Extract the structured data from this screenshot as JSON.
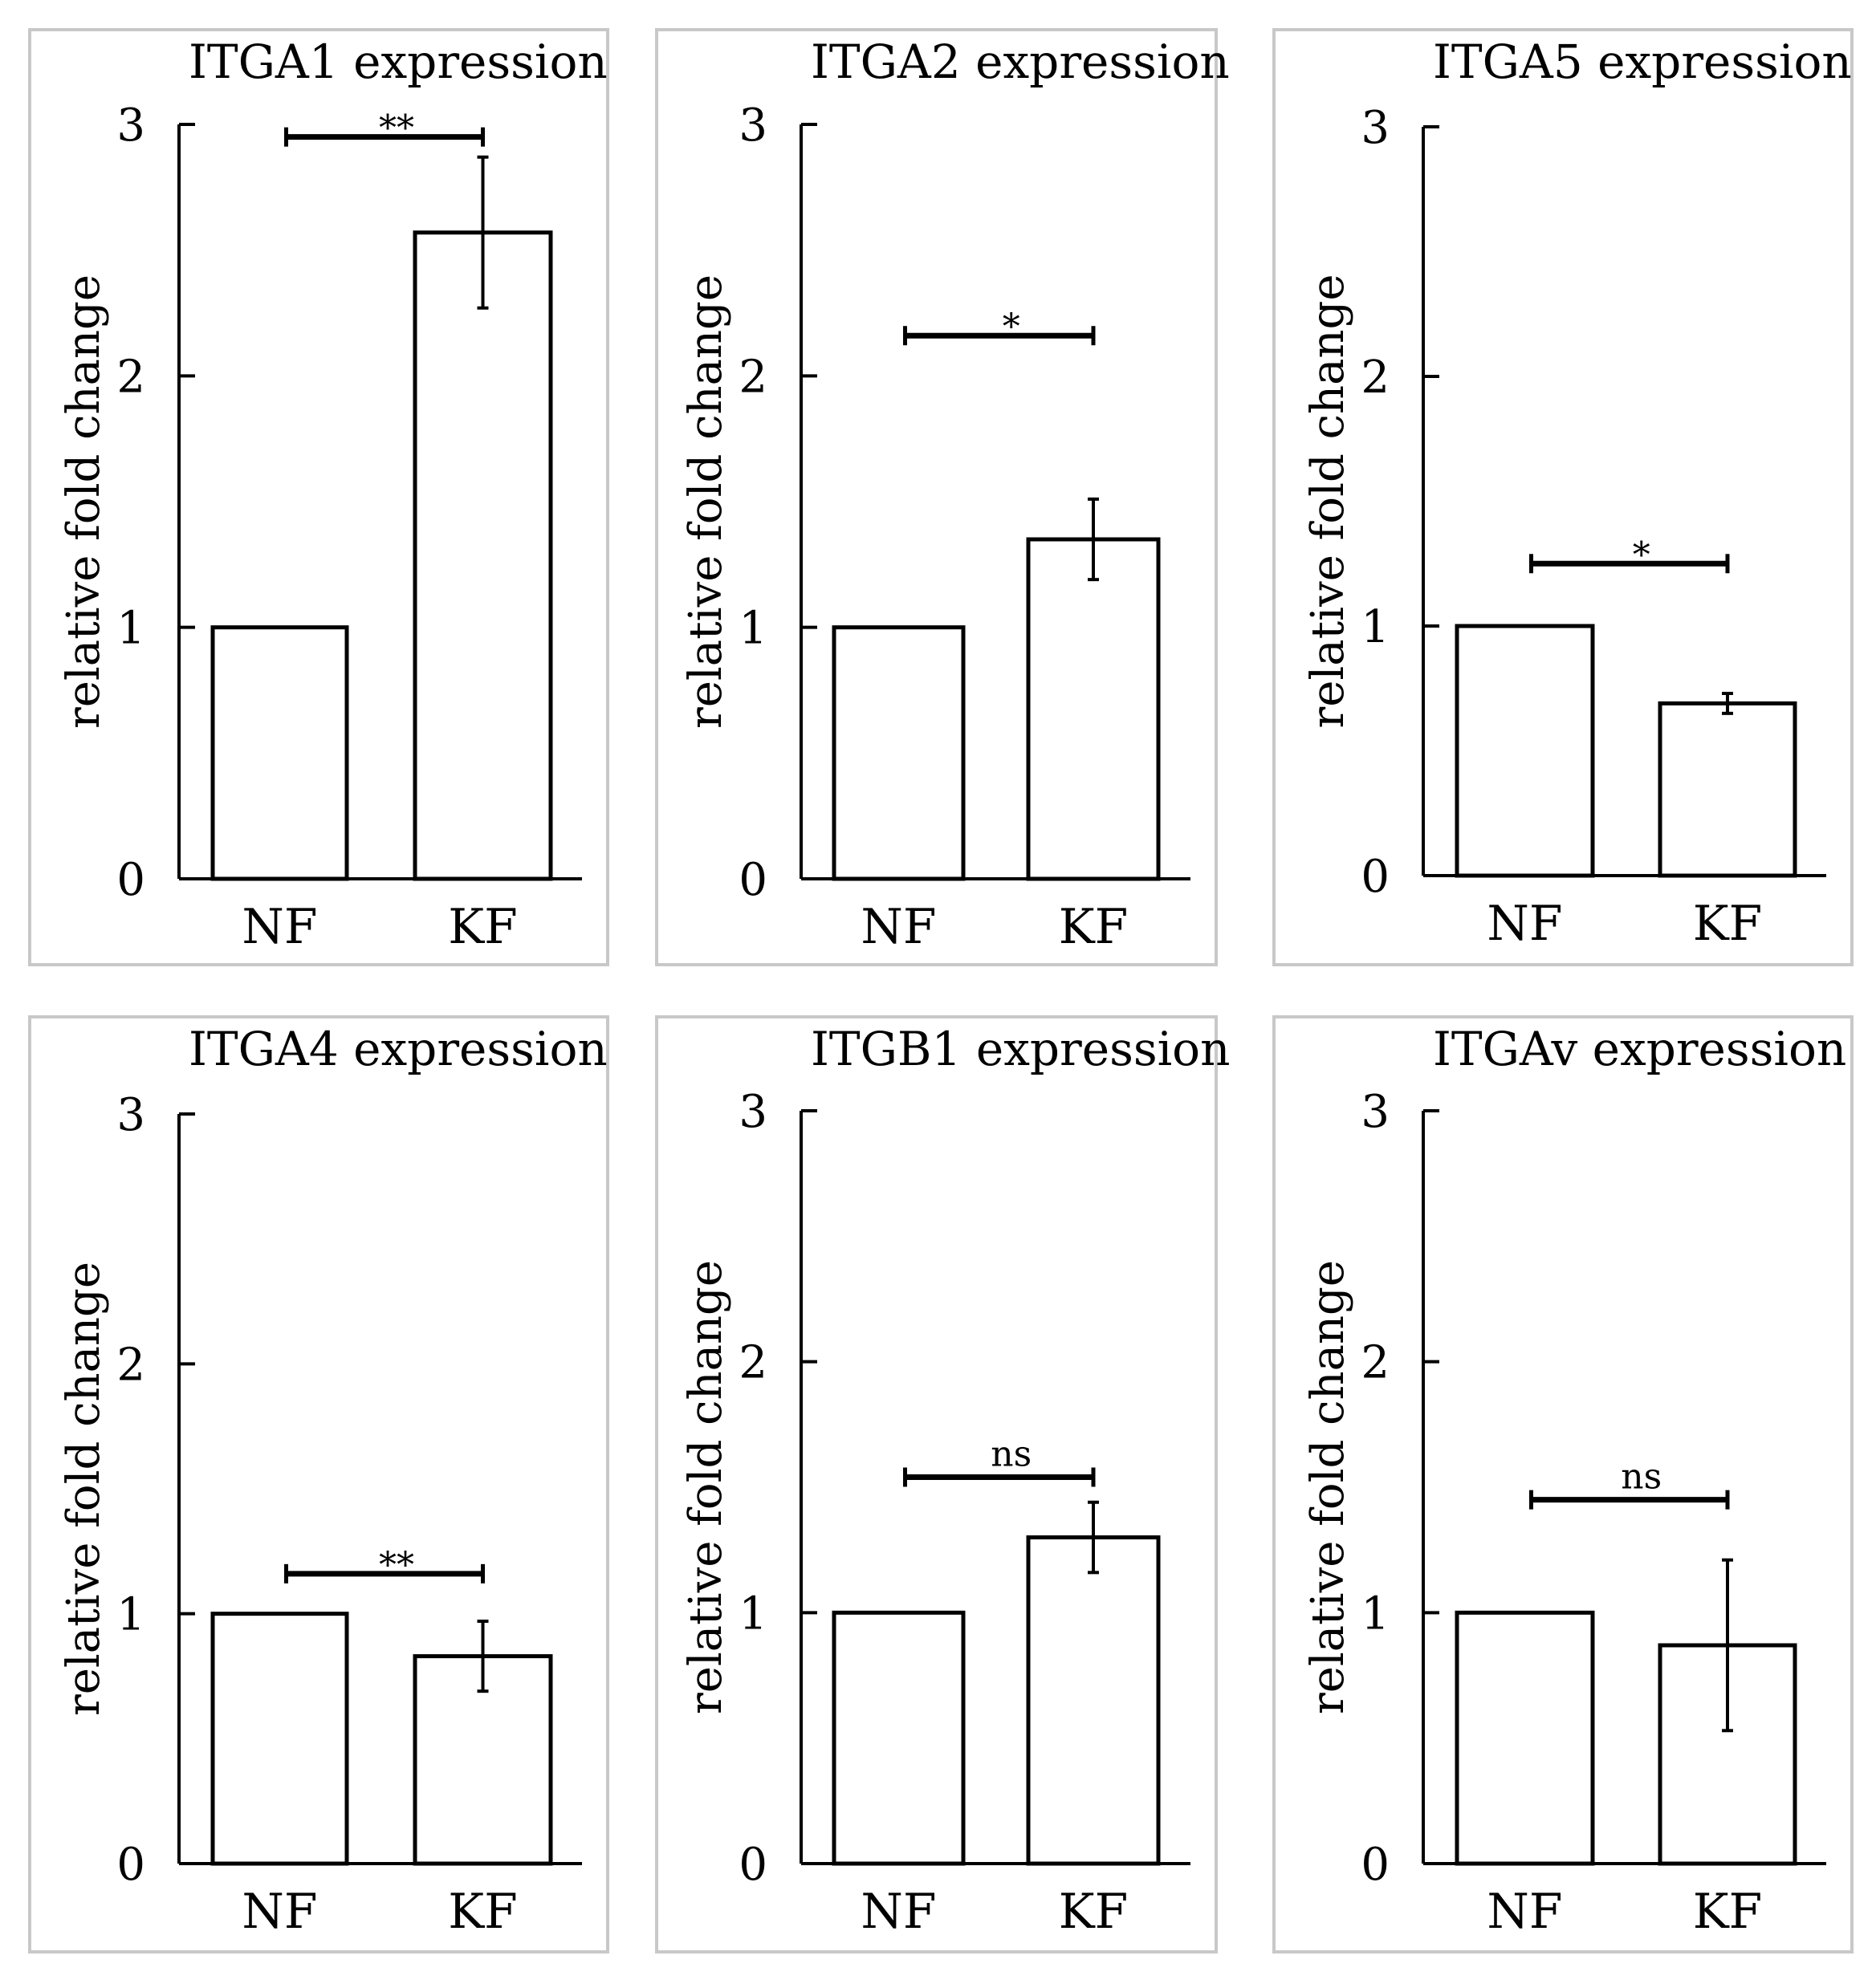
{
  "chart_data": [
    {
      "type": "bar",
      "title": "ITGA1 expression",
      "categories": [
        "NF",
        "KF"
      ],
      "values": [
        1.0,
        2.57
      ],
      "error": [
        0,
        0.3
      ],
      "ylabel": "relative fold change",
      "ylim": [
        0,
        3
      ],
      "yticks": [
        "0",
        "1",
        "2",
        "3"
      ],
      "significance": {
        "label": "**",
        "level": 2.95
      }
    },
    {
      "type": "bar",
      "title": "ITGA2 expression",
      "categories": [
        "NF",
        "KF"
      ],
      "values": [
        1.0,
        1.35
      ],
      "error": [
        0,
        0.16
      ],
      "ylabel": "relative fold change",
      "ylim": [
        0,
        3
      ],
      "yticks": [
        "0",
        "1",
        "2",
        "3"
      ],
      "significance": {
        "label": "*",
        "level": 2.16
      }
    },
    {
      "type": "bar",
      "title": "ITGA5 expression",
      "categories": [
        "NF",
        "KF"
      ],
      "values": [
        1.0,
        0.69
      ],
      "error": [
        0,
        0.04
      ],
      "ylabel": "relative fold change",
      "ylim": [
        0,
        3
      ],
      "yticks": [
        "0",
        "1",
        "2",
        "3"
      ],
      "significance": {
        "label": "*",
        "level": 1.25
      }
    },
    {
      "type": "bar",
      "title": "ITGA4 expression",
      "categories": [
        "NF",
        "KF"
      ],
      "values": [
        1.0,
        0.83
      ],
      "error": [
        0,
        0.14
      ],
      "ylabel": "relative fold change",
      "ylim": [
        0,
        3
      ],
      "yticks": [
        "0",
        "1",
        "2",
        "3"
      ],
      "significance": {
        "label": "**",
        "level": 1.16
      }
    },
    {
      "type": "bar",
      "title": "ITGB1 expression",
      "categories": [
        "NF",
        "KF"
      ],
      "values": [
        1.0,
        1.3
      ],
      "error": [
        0,
        0.14
      ],
      "ylabel": "relative fold change",
      "ylim": [
        0,
        3
      ],
      "yticks": [
        "0",
        "1",
        "2",
        "3"
      ],
      "significance": {
        "label": "ns",
        "level": 1.54
      }
    },
    {
      "type": "bar",
      "title": "ITGAv expression",
      "categories": [
        "NF",
        "KF"
      ],
      "values": [
        1.0,
        0.87
      ],
      "error": [
        0,
        0.34
      ],
      "ylabel": "relative fold change",
      "ylim": [
        0,
        3
      ],
      "yticks": [
        "0",
        "1",
        "2",
        "3"
      ],
      "significance": {
        "label": "ns",
        "level": 1.45
      }
    }
  ]
}
